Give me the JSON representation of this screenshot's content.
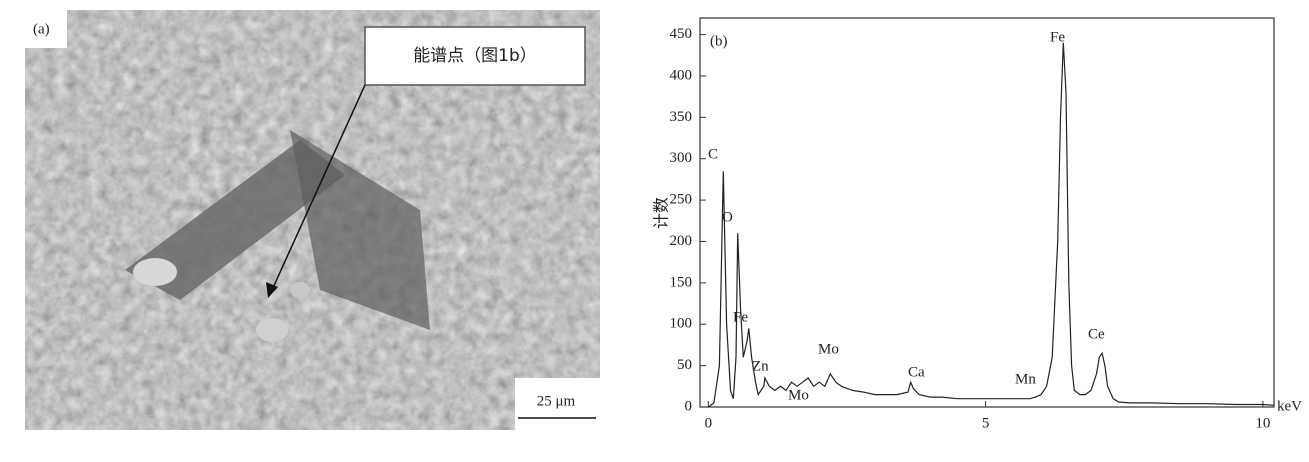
{
  "panel_a": {
    "label": "(a)",
    "callout": "能谱点（图1b）",
    "scale_bar": "25 μm"
  },
  "chart_data": {
    "type": "line",
    "panel_label": "(b)",
    "ylabel": "计数",
    "xlabel": "keV",
    "x": [
      0,
      0.1,
      0.2,
      0.27,
      0.33,
      0.4,
      0.45,
      0.5,
      0.53,
      0.58,
      0.63,
      0.7,
      0.73,
      0.78,
      0.85,
      0.9,
      1.0,
      1.02,
      1.1,
      1.2,
      1.3,
      1.4,
      1.5,
      1.6,
      1.7,
      1.8,
      1.9,
      2.0,
      2.1,
      2.2,
      2.3,
      2.4,
      2.6,
      2.8,
      3.0,
      3.2,
      3.4,
      3.6,
      3.65,
      3.7,
      3.8,
      4.0,
      4.2,
      4.5,
      4.8,
      5.0,
      5.3,
      5.6,
      5.8,
      5.9,
      6.0,
      6.1,
      6.2,
      6.3,
      6.35,
      6.4,
      6.45,
      6.5,
      6.55,
      6.6,
      6.7,
      6.8,
      6.9,
      7.0,
      7.05,
      7.1,
      7.15,
      7.2,
      7.3,
      7.4,
      7.6,
      8.0,
      8.5,
      9.0,
      9.5,
      10.0,
      10.2
    ],
    "series": [
      {
        "color": "#222222",
        "values": [
          0,
          5,
          50,
          285,
          100,
          20,
          10,
          60,
          210,
          120,
          60,
          80,
          95,
          60,
          30,
          15,
          25,
          35,
          25,
          20,
          25,
          20,
          30,
          25,
          30,
          35,
          25,
          30,
          25,
          40,
          30,
          25,
          20,
          18,
          15,
          15,
          15,
          18,
          30,
          22,
          15,
          12,
          12,
          10,
          10,
          10,
          10,
          10,
          10,
          12,
          15,
          25,
          60,
          200,
          350,
          440,
          380,
          150,
          50,
          20,
          15,
          15,
          20,
          40,
          60,
          65,
          50,
          25,
          10,
          6,
          5,
          5,
          4,
          4,
          3,
          3,
          2
        ]
      }
    ],
    "xlim": [
      -0.15,
      10.2
    ],
    "xticks": [
      0,
      5,
      10
    ],
    "ylim": [
      0,
      470
    ],
    "yticks": [
      0,
      50,
      100,
      150,
      200,
      250,
      300,
      350,
      400,
      450
    ],
    "annotations": [
      "C",
      "O",
      "Fe",
      "Zn",
      "Mo",
      "Mo",
      "Ca",
      "Mn",
      "Fe",
      "Ce"
    ]
  }
}
